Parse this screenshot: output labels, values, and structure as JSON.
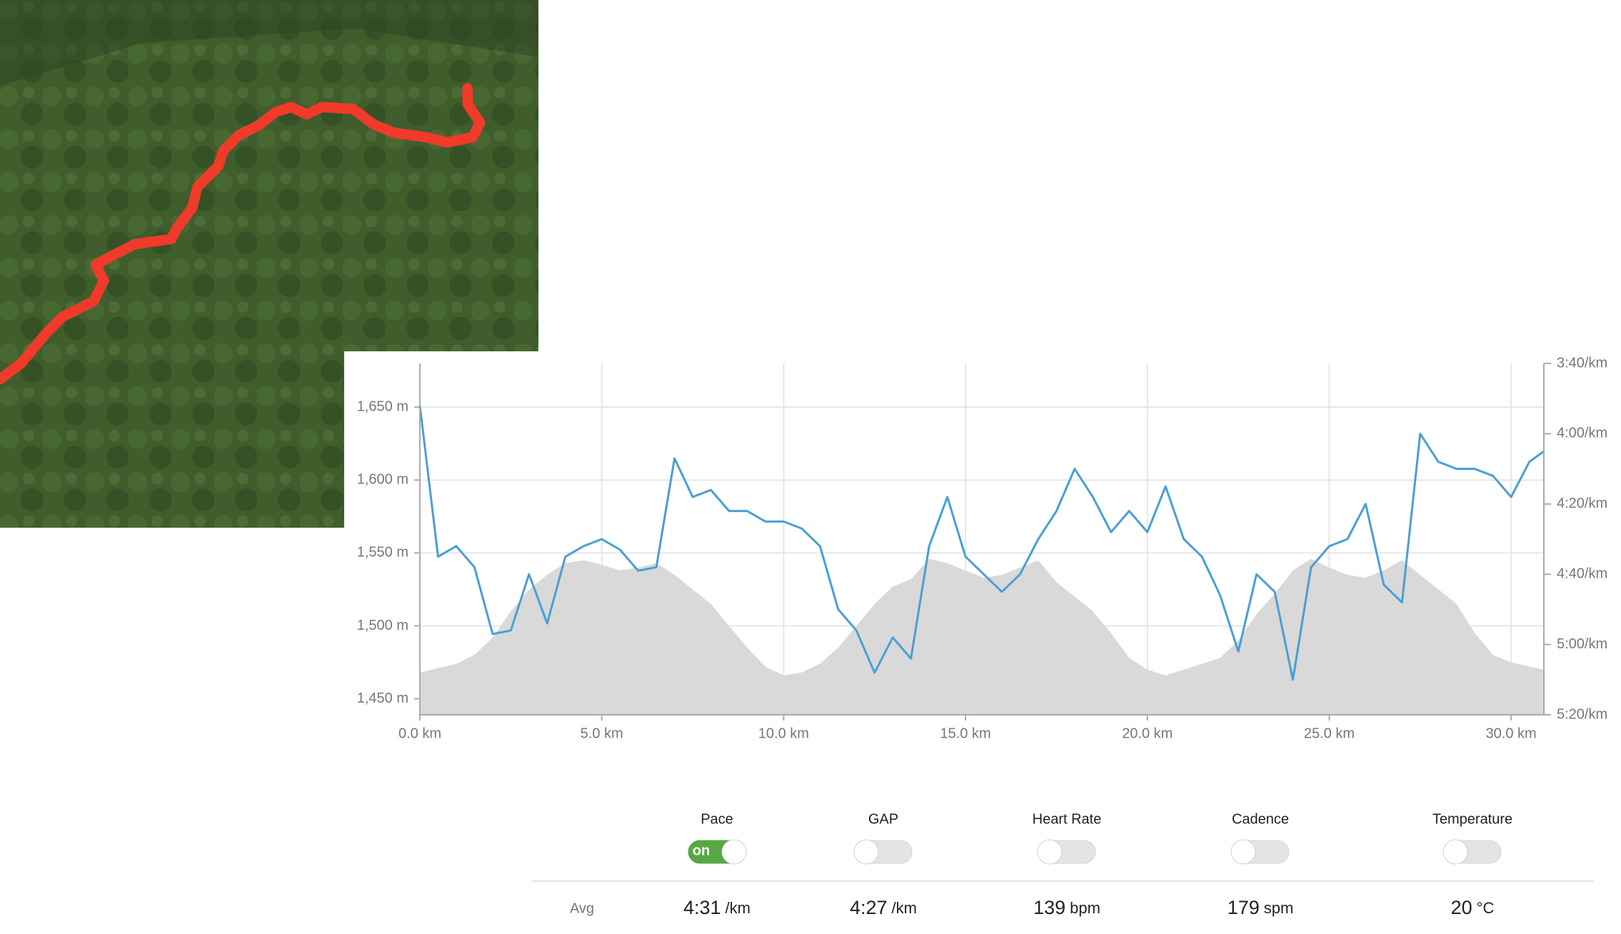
{
  "chart_data": {
    "type": "area-line",
    "x": [
      0,
      0.5,
      1,
      1.5,
      2,
      2.5,
      3,
      3.5,
      4,
      4.5,
      5,
      5.5,
      6,
      6.5,
      7,
      7.5,
      8,
      8.5,
      9,
      9.5,
      10,
      10.5,
      11,
      11.5,
      12,
      12.5,
      13,
      13.5,
      14,
      14.5,
      15,
      15.5,
      16,
      16.5,
      17,
      17.5,
      18,
      18.5,
      19,
      19.5,
      20,
      20.5,
      21,
      21.5,
      22,
      22.5,
      23,
      23.5,
      24,
      24.5,
      25,
      25.5,
      26,
      26.5,
      27,
      27.5,
      28,
      28.5,
      29,
      29.5,
      30,
      30.5,
      30.9
    ],
    "series": [
      {
        "kind": "area",
        "color": "#d9d9d9",
        "values": [
          1468,
          1471,
          1474,
          1480,
          1492,
          1510,
          1525,
          1535,
          1543,
          1545,
          1542,
          1538,
          1540,
          1543,
          1535,
          1525,
          1515,
          1500,
          1485,
          1472,
          1466,
          1468,
          1474,
          1485,
          1500,
          1515,
          1527,
          1532,
          1546,
          1543,
          1538,
          1533,
          1535,
          1540,
          1545,
          1530,
          1520,
          1510,
          1495,
          1478,
          1470,
          1466,
          1470,
          1474,
          1478,
          1490,
          1508,
          1522,
          1538,
          1546,
          1540,
          1535,
          1533,
          1538,
          1545,
          1535,
          1525,
          1515,
          1495,
          1480,
          1475,
          1472,
          1470
        ]
      },
      {
        "kind": "line",
        "axis": "y2",
        "color": "#4a9fd5",
        "values": [
          232,
          275,
          272,
          278,
          297,
          296,
          280,
          294,
          275,
          272,
          270,
          273,
          279,
          278,
          247,
          258,
          256,
          262,
          262,
          265,
          265,
          267,
          272,
          290,
          296,
          308,
          298,
          304,
          272,
          258,
          275,
          280,
          285,
          280,
          270,
          262,
          250,
          258,
          268,
          262,
          268,
          255,
          270,
          275,
          286,
          302,
          280,
          285,
          310,
          278,
          272,
          270,
          260,
          283,
          288,
          240,
          248,
          250,
          250,
          252,
          258,
          248,
          245
        ]
      }
    ],
    "xlim": [
      0,
      30.9
    ],
    "xticks": [
      {
        "value": 0,
        "label": "0.0 km"
      },
      {
        "value": 5,
        "label": "5.0 km"
      },
      {
        "value": 10,
        "label": "10.0 km"
      },
      {
        "value": 15,
        "label": "15.0 km"
      },
      {
        "value": 20,
        "label": "20.0 km"
      },
      {
        "value": 25,
        "label": "25.0 km"
      },
      {
        "value": 30,
        "label": "30.0 km"
      }
    ],
    "ylim": [
      1439,
      1680
    ],
    "yticks": [
      {
        "value": 1450,
        "label": "1,450 m"
      },
      {
        "value": 1500,
        "label": "1,500 m"
      },
      {
        "value": 1550,
        "label": "1,550 m"
      },
      {
        "value": 1600,
        "label": "1,600 m"
      },
      {
        "value": 1650,
        "label": "1,650 m"
      }
    ],
    "y2lim": [
      320,
      220
    ],
    "y2ticks": [
      {
        "value": 220,
        "label": "3:40/km"
      },
      {
        "value": 240,
        "label": "4:00/km"
      },
      {
        "value": 260,
        "label": "4:20/km"
      },
      {
        "value": 280,
        "label": "4:40/km"
      },
      {
        "value": 300,
        "label": "5:00/km"
      },
      {
        "value": 320,
        "label": "5:20/km"
      }
    ],
    "grid": true
  },
  "stats": {
    "row_label": "Avg",
    "metrics": [
      {
        "label": "Pace",
        "enabled": true,
        "toggle_text": "on",
        "avg": "4:31",
        "unit": "/km"
      },
      {
        "label": "GAP",
        "enabled": false,
        "avg": "4:27",
        "unit": "/km"
      },
      {
        "label": "Heart Rate",
        "enabled": false,
        "avg": 139,
        "unit": "bpm"
      },
      {
        "label": "Cadence",
        "enabled": false,
        "avg": 179,
        "unit": "spm"
      },
      {
        "label": "Temperature",
        "enabled": false,
        "avg": 20,
        "unit": "°C"
      }
    ]
  }
}
